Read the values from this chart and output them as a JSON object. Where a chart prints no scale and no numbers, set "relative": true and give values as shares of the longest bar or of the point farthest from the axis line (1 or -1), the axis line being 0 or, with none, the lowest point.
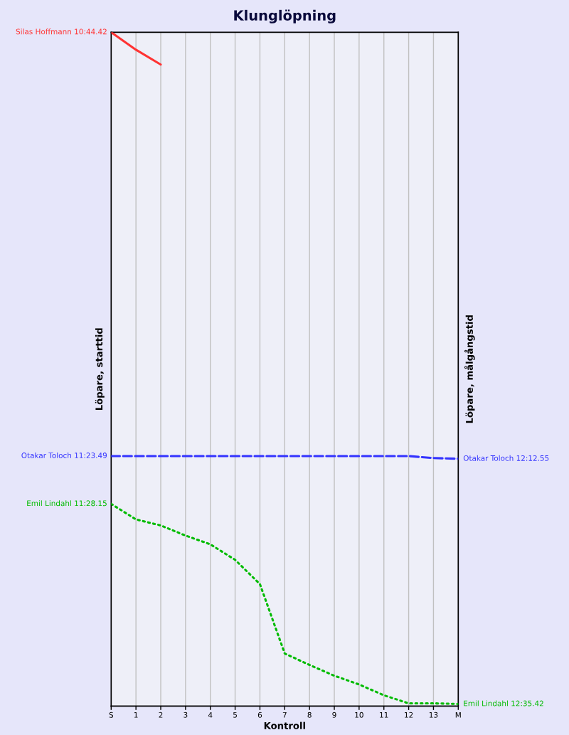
{
  "chart_data": {
    "type": "line",
    "title": "Klunglöpning",
    "xlabel": "Kontroll",
    "ylabel": "Löpare, starttid",
    "y2label": "Löpare, målgångstid",
    "relative": true,
    "grid": "x",
    "categories": [
      "S",
      "1",
      "2",
      "3",
      "4",
      "5",
      "6",
      "7",
      "8",
      "9",
      "10",
      "11",
      "12",
      "13",
      "M"
    ],
    "series": [
      {
        "name": "Silas Hoffmann 10:44.42",
        "color": "#ff3333",
        "line_style": "solid",
        "values": [
          1.0,
          0.974,
          0.952,
          null,
          null,
          null,
          null,
          null,
          null,
          null,
          null,
          null,
          null,
          null,
          null
        ]
      },
      {
        "name": "Otakar Toloch 11:23.49",
        "color": "#3333ff",
        "line_style": "dashed",
        "values": [
          0.371,
          0.371,
          0.371,
          0.371,
          0.371,
          0.371,
          0.371,
          0.371,
          0.371,
          0.371,
          0.371,
          0.371,
          0.371,
          0.368,
          0.367
        ]
      },
      {
        "name": "Emil Lindahl 11:28.15",
        "color": "#00bb00",
        "line_style": "dotted",
        "values": [
          0.3,
          0.277,
          0.268,
          0.253,
          0.24,
          0.217,
          0.181,
          0.078,
          0.061,
          0.045,
          0.032,
          0.016,
          0.004,
          0.004,
          0.003
        ]
      }
    ],
    "annotations": [
      {
        "text": "Otakar Toloch 12:12.55",
        "x": "M",
        "y": 0.367
      },
      {
        "text": "Emil Lindahl 12:35.42",
        "x": "M",
        "y": 0.003
      }
    ]
  }
}
